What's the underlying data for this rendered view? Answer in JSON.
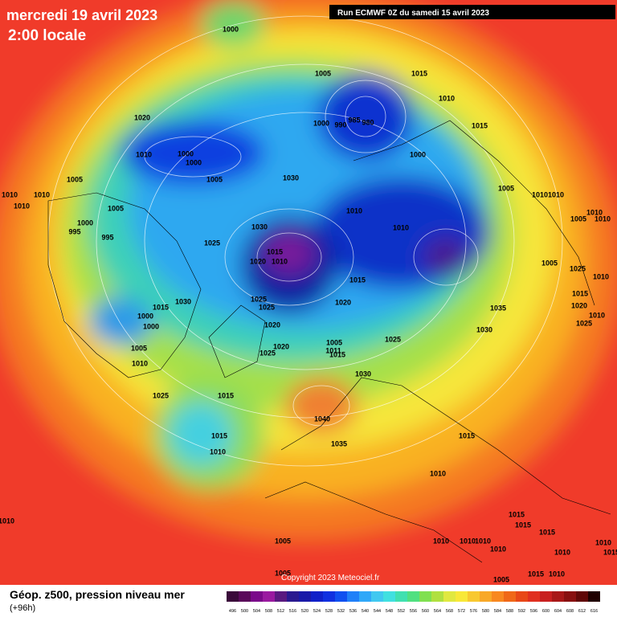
{
  "header": {
    "title": "mercredi 19 avril 2023",
    "subtitle": "2:00 locale",
    "run": "Run ECMWF 0Z du samedi 15 avril 2023"
  },
  "isobar_labels": [
    "1000",
    "1005",
    "1015",
    "1010",
    "1015",
    "1020",
    "1000",
    "990",
    "985",
    "980",
    "1010",
    "1000",
    "1000",
    "1000",
    "1005",
    "1005",
    "1030",
    "1005",
    "1010",
    "1010",
    "1010",
    "1010",
    "1010",
    "1005",
    "1010",
    "1010",
    "1005",
    "1010",
    "1000",
    "995",
    "995",
    "1030",
    "1010",
    "1025",
    "1015",
    "1020",
    "1010",
    "1005",
    "1025",
    "1010",
    "1015",
    "1015",
    "1030",
    "1025",
    "1025",
    "1020",
    "1035",
    "1015",
    "1020",
    "1010",
    "1000",
    "1025",
    "1000",
    "1020",
    "1030",
    "1005",
    "1025",
    "1005",
    "1020",
    "1011",
    "1025",
    "1015",
    "1010",
    "1030",
    "1025",
    "1015",
    "1040",
    "1015",
    "1015",
    "1035",
    "1010",
    "1010",
    "1010",
    "1015",
    "1015",
    "1015",
    "1010",
    "1010",
    "1010",
    "1010",
    "1005",
    "1010",
    "1010",
    "1015",
    "1015",
    "1010",
    "1005",
    "1005"
  ],
  "footer": {
    "title": "Géop. z500, pression niveau mer",
    "subtitle": "(+96h)",
    "copyright": "Copyright 2023 Meteociel.fr"
  },
  "legend": {
    "labels": [
      "496",
      "500",
      "504",
      "508",
      "512",
      "516",
      "520",
      "524",
      "528",
      "532",
      "536",
      "540",
      "544",
      "548",
      "552",
      "556",
      "560",
      "564",
      "568",
      "572",
      "576",
      "580",
      "584",
      "588",
      "592",
      "596",
      "600",
      "604",
      "608",
      "612",
      "616"
    ]
  }
}
